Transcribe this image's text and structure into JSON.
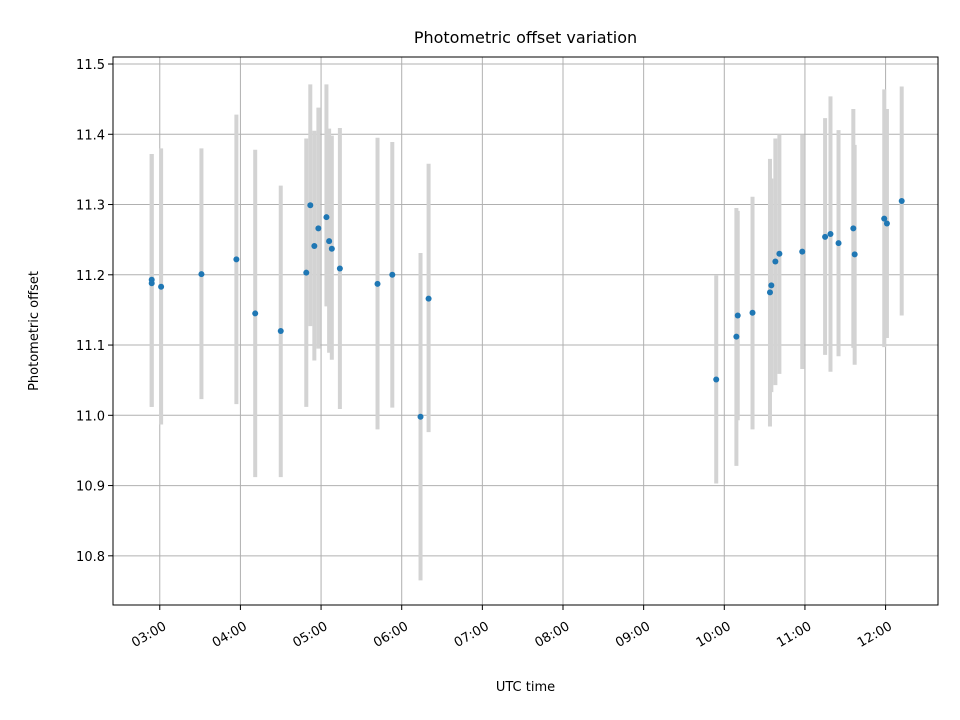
{
  "chart_data": {
    "type": "scatter",
    "title": "Photometric offset variation",
    "xlabel": "UTC time",
    "ylabel": "Photometric offset",
    "grid": true,
    "colors": {
      "point": "#1f77b4",
      "errorbar": "#d3d3d3",
      "grid": "#b0b0b0"
    },
    "xlim_hours": [
      2.42,
      12.65
    ],
    "ylim": [
      10.73,
      11.51
    ],
    "x_ticks": [
      3,
      4,
      5,
      6,
      7,
      8,
      9,
      10,
      11,
      12
    ],
    "x_tick_labels": [
      "03:00",
      "04:00",
      "05:00",
      "06:00",
      "07:00",
      "08:00",
      "09:00",
      "10:00",
      "11:00",
      "12:00"
    ],
    "y_ticks": [
      10.8,
      10.9,
      11.0,
      11.1,
      11.2,
      11.3,
      11.4,
      11.5
    ],
    "y_tick_labels": [
      "10.8",
      "10.9",
      "11.0",
      "11.1",
      "11.2",
      "11.3",
      "11.4",
      "11.5"
    ],
    "points": [
      {
        "t": "02:54",
        "y": 11.193,
        "lo": 11.012,
        "hi": 11.372
      },
      {
        "t": "02:54",
        "y": 11.188,
        "lo": 11.012,
        "hi": 11.372
      },
      {
        "t": "03:01",
        "y": 11.183,
        "lo": 10.987,
        "hi": 11.38
      },
      {
        "t": "03:31",
        "y": 11.201,
        "lo": 11.023,
        "hi": 11.38
      },
      {
        "t": "03:57",
        "y": 11.222,
        "lo": 11.016,
        "hi": 11.428
      },
      {
        "t": "04:11",
        "y": 11.145,
        "lo": 10.912,
        "hi": 11.378
      },
      {
        "t": "04:30",
        "y": 11.12,
        "lo": 10.912,
        "hi": 11.327
      },
      {
        "t": "04:49",
        "y": 11.203,
        "lo": 11.012,
        "hi": 11.394
      },
      {
        "t": "04:52",
        "y": 11.299,
        "lo": 11.127,
        "hi": 11.471
      },
      {
        "t": "04:55",
        "y": 11.241,
        "lo": 11.078,
        "hi": 11.405
      },
      {
        "t": "04:58",
        "y": 11.266,
        "lo": 11.095,
        "hi": 11.438
      },
      {
        "t": "05:04",
        "y": 11.282,
        "lo": 11.155,
        "hi": 11.471
      },
      {
        "t": "05:06",
        "y": 11.248,
        "lo": 11.089,
        "hi": 11.408
      },
      {
        "t": "05:08",
        "y": 11.237,
        "lo": 11.079,
        "hi": 11.398
      },
      {
        "t": "05:14",
        "y": 11.209,
        "lo": 11.009,
        "hi": 11.409
      },
      {
        "t": "05:42",
        "y": 11.187,
        "lo": 10.98,
        "hi": 11.395
      },
      {
        "t": "05:53",
        "y": 11.2,
        "lo": 11.011,
        "hi": 11.389
      },
      {
        "t": "06:14",
        "y": 10.998,
        "lo": 10.765,
        "hi": 11.231
      },
      {
        "t": "06:20",
        "y": 11.166,
        "lo": 10.976,
        "hi": 11.358
      },
      {
        "t": "09:54",
        "y": 11.051,
        "lo": 10.903,
        "hi": 11.199
      },
      {
        "t": "10:09",
        "y": 11.112,
        "lo": 10.928,
        "hi": 11.295
      },
      {
        "t": "10:10",
        "y": 11.142,
        "lo": 10.993,
        "hi": 11.291
      },
      {
        "t": "10:21",
        "y": 11.146,
        "lo": 10.98,
        "hi": 11.311
      },
      {
        "t": "10:34",
        "y": 11.175,
        "lo": 10.984,
        "hi": 11.365
      },
      {
        "t": "10:35",
        "y": 11.185,
        "lo": 11.033,
        "hi": 11.337
      },
      {
        "t": "10:38",
        "y": 11.219,
        "lo": 11.043,
        "hi": 11.394
      },
      {
        "t": "10:41",
        "y": 11.23,
        "lo": 11.059,
        "hi": 11.4
      },
      {
        "t": "10:58",
        "y": 11.233,
        "lo": 11.066,
        "hi": 11.399
      },
      {
        "t": "11:15",
        "y": 11.254,
        "lo": 11.086,
        "hi": 11.423
      },
      {
        "t": "11:19",
        "y": 11.258,
        "lo": 11.062,
        "hi": 11.454
      },
      {
        "t": "11:25",
        "y": 11.245,
        "lo": 11.084,
        "hi": 11.406
      },
      {
        "t": "11:36",
        "y": 11.266,
        "lo": 11.096,
        "hi": 11.436
      },
      {
        "t": "11:37",
        "y": 11.229,
        "lo": 11.072,
        "hi": 11.385
      },
      {
        "t": "11:59",
        "y": 11.28,
        "lo": 11.097,
        "hi": 11.464
      },
      {
        "t": "12:01",
        "y": 11.273,
        "lo": 11.11,
        "hi": 11.436
      },
      {
        "t": "12:12",
        "y": 11.305,
        "lo": 11.142,
        "hi": 11.468
      }
    ]
  }
}
